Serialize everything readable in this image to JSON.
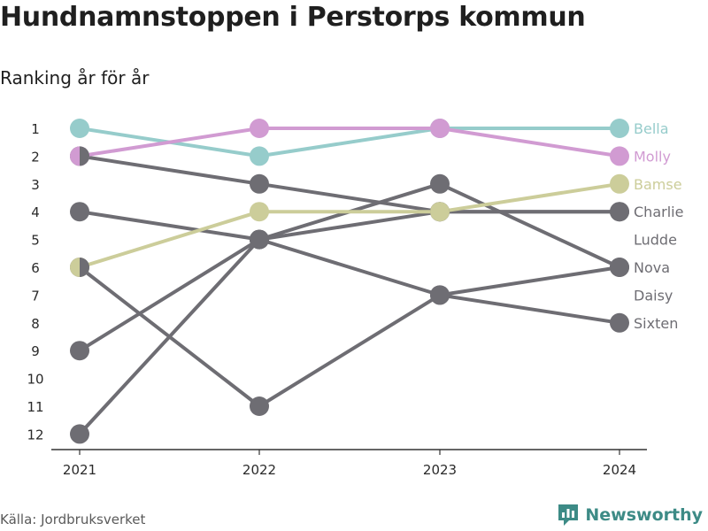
{
  "title": "Hundnamnstoppen i Perstorps kommun",
  "subtitle": "Ranking år för år",
  "source": "Källa: Jordbruksverket",
  "brand": {
    "name": "Newsworthy",
    "icon": "newsworthy-logo-icon"
  },
  "colors": {
    "Bella": "#96cccb",
    "Molly": "#d19bd2",
    "Bamse": "#cccd9a",
    "other": "#6e6d73",
    "axis": "#333333"
  },
  "chart_data": {
    "type": "line",
    "x": [
      "2021",
      "2022",
      "2023",
      "2024"
    ],
    "ylim": [
      1,
      12
    ],
    "y_reversed": true,
    "y_ticks": [
      "1",
      "2",
      "3",
      "4",
      "5",
      "6",
      "7",
      "8",
      "9",
      "10",
      "11",
      "12"
    ],
    "series": [
      {
        "name": "Bella",
        "values": [
          1,
          2,
          1,
          1
        ]
      },
      {
        "name": "Molly",
        "values": [
          2,
          1,
          1,
          2
        ]
      },
      {
        "name": "Bamse",
        "values": [
          6,
          4,
          4,
          3
        ]
      },
      {
        "name": "Charlie",
        "values": [
          2,
          3,
          4,
          4
        ]
      },
      {
        "name": "Ludde",
        "values": [
          4,
          5,
          7,
          8
        ]
      },
      {
        "name": "Nova",
        "values": [
          12,
          5,
          3,
          6
        ]
      },
      {
        "name": "Daisy",
        "values": [
          9,
          5,
          4,
          4
        ]
      },
      {
        "name": "Sixten",
        "values": [
          6,
          11,
          7,
          6
        ]
      }
    ],
    "end_labels": [
      "Bella",
      "Molly",
      "Bamse",
      "Charlie",
      "Ludde",
      "Nova",
      "Daisy",
      "Sixten"
    ],
    "end_label_ranks": [
      1,
      2,
      3,
      4,
      5,
      6,
      7,
      8
    ]
  }
}
